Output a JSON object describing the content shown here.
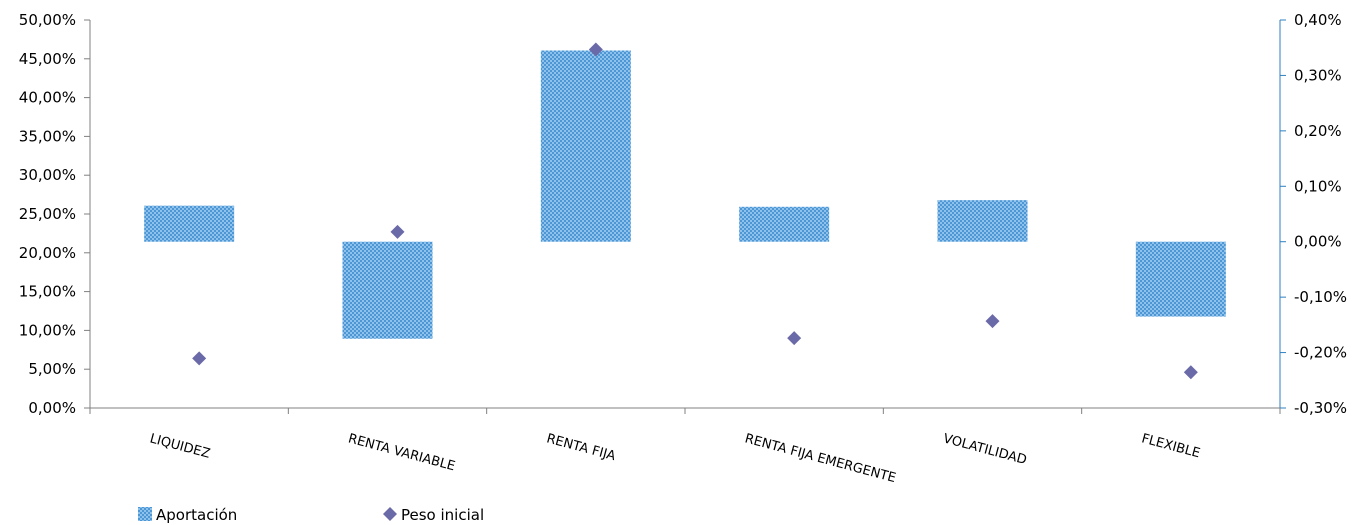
{
  "chart_data": {
    "type": "bar",
    "categories": [
      "LIQUIDEZ",
      "RENTA VARIABLE",
      "RENTA FIJA",
      "RENTA FIJA EMERGENTE",
      "VOLATILIDAD",
      "FLEXIBLE"
    ],
    "series": [
      {
        "name": "Aportación",
        "kind": "floating-bar",
        "axis": "right",
        "values": [
          0.065,
          -0.175,
          0.345,
          0.063,
          0.075,
          -0.135
        ],
        "color": "#5b9bd5"
      },
      {
        "name": "Peso inicial",
        "kind": "scatter",
        "axis": "left",
        "values": [
          6.4,
          22.7,
          46.2,
          9.0,
          11.2,
          4.6
        ],
        "color": "#6a6aa8"
      }
    ],
    "left_axis": {
      "min": 0,
      "max": 50,
      "step": 5,
      "tick_labels": [
        "0,00%",
        "5,00%",
        "10,00%",
        "15,00%",
        "20,00%",
        "25,00%",
        "30,00%",
        "35,00%",
        "40,00%",
        "45,00%",
        "50,00%"
      ]
    },
    "right_axis": {
      "min": -0.3,
      "max": 0.4,
      "step": 0.1,
      "tick_labels": [
        "-0,30%",
        "-0,20%",
        "-0,10%",
        "0,00%",
        "0,10%",
        "0,20%",
        "0,30%",
        "0,40%"
      ]
    },
    "legend": {
      "placement": "bottom-left",
      "items": [
        {
          "label": "Aportación",
          "marker": "hatched-square"
        },
        {
          "label": "Peso inicial",
          "marker": "diamond"
        }
      ]
    },
    "grid": false,
    "title": "",
    "xlabel": "",
    "ylabel": ""
  }
}
